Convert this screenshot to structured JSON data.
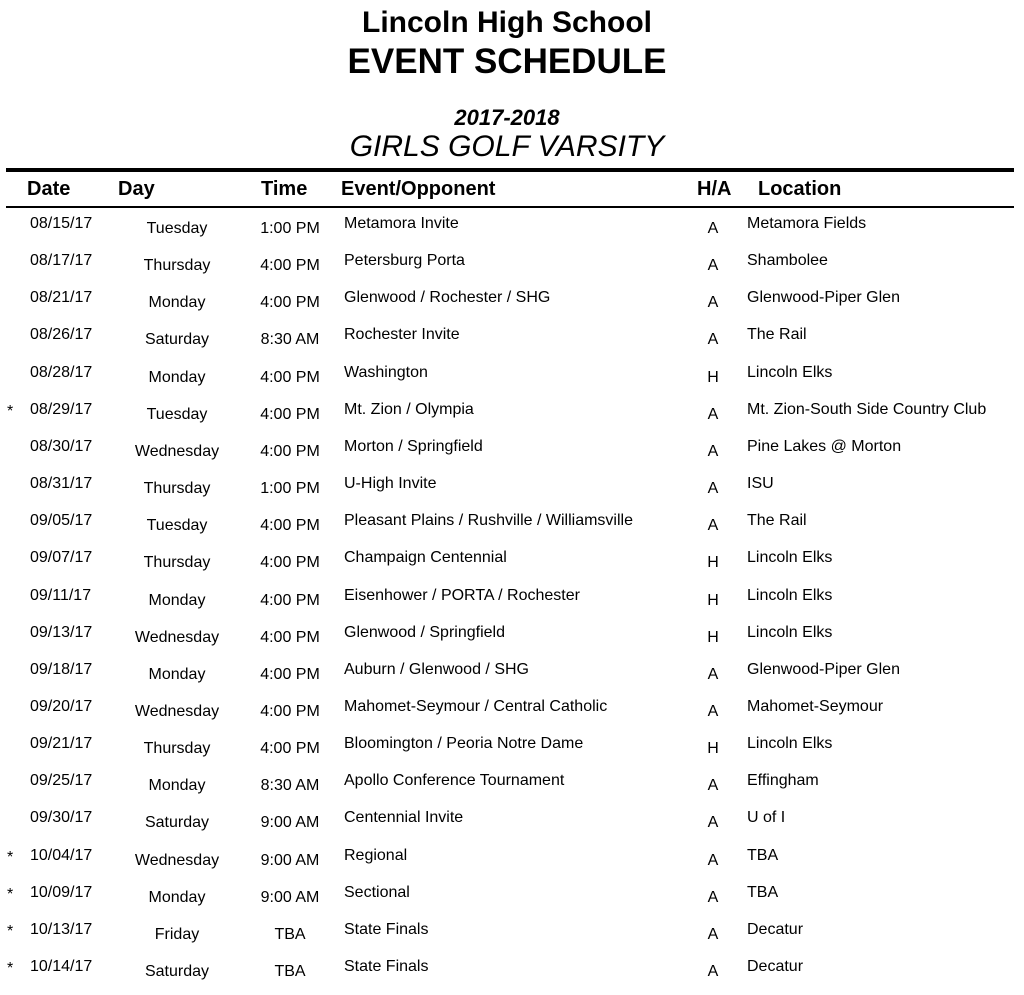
{
  "header": {
    "school": "Lincoln High School",
    "title": "EVENT SCHEDULE",
    "season": "2017-2018",
    "sport": "GIRLS GOLF VARSITY"
  },
  "columns": {
    "date": "Date",
    "day": "Day",
    "time": "Time",
    "event": "Event/Opponent",
    "ha": "H/A",
    "location": "Location"
  },
  "rows": [
    {
      "mark": "",
      "date": "08/15/17",
      "day": "Tuesday",
      "time": "1:00 PM",
      "event": "Metamora Invite",
      "ha": "A",
      "location": "Metamora Fields"
    },
    {
      "mark": "",
      "date": "08/17/17",
      "day": "Thursday",
      "time": "4:00 PM",
      "event": "Petersburg Porta",
      "ha": "A",
      "location": "Shambolee"
    },
    {
      "mark": "",
      "date": "08/21/17",
      "day": "Monday",
      "time": "4:00 PM",
      "event": "Glenwood / Rochester / SHG",
      "ha": "A",
      "location": "Glenwood-Piper Glen"
    },
    {
      "mark": "",
      "date": "08/26/17",
      "day": "Saturday",
      "time": "8:30 AM",
      "event": "Rochester Invite",
      "ha": "A",
      "location": "The Rail"
    },
    {
      "mark": "",
      "date": "08/28/17",
      "day": "Monday",
      "time": "4:00 PM",
      "event": "Washington",
      "ha": "H",
      "location": "Lincoln Elks"
    },
    {
      "mark": "*",
      "date": "08/29/17",
      "day": "Tuesday",
      "time": "4:00 PM",
      "event": "Mt. Zion / Olympia",
      "ha": "A",
      "location": "Mt. Zion-South Side Country Club"
    },
    {
      "mark": "",
      "date": "08/30/17",
      "day": "Wednesday",
      "time": "4:00 PM",
      "event": "Morton / Springfield",
      "ha": "A",
      "location": "Pine Lakes @ Morton"
    },
    {
      "mark": "",
      "date": "08/31/17",
      "day": "Thursday",
      "time": "1:00 PM",
      "event": "U-High Invite",
      "ha": "A",
      "location": "ISU"
    },
    {
      "mark": "",
      "date": "09/05/17",
      "day": "Tuesday",
      "time": "4:00 PM",
      "event": "Pleasant Plains / Rushville / Williamsville",
      "ha": "A",
      "location": "The Rail"
    },
    {
      "mark": "",
      "date": "09/07/17",
      "day": "Thursday",
      "time": "4:00 PM",
      "event": "Champaign Centennial",
      "ha": "H",
      "location": "Lincoln Elks"
    },
    {
      "mark": "",
      "date": "09/11/17",
      "day": "Monday",
      "time": "4:00 PM",
      "event": "Eisenhower / PORTA /  Rochester",
      "ha": "H",
      "location": "Lincoln Elks"
    },
    {
      "mark": "",
      "date": "09/13/17",
      "day": "Wednesday",
      "time": "4:00 PM",
      "event": "Glenwood / Springfield",
      "ha": "H",
      "location": "Lincoln Elks"
    },
    {
      "mark": "",
      "date": "09/18/17",
      "day": "Monday",
      "time": "4:00 PM",
      "event": "Auburn / Glenwood / SHG",
      "ha": "A",
      "location": "Glenwood-Piper Glen"
    },
    {
      "mark": "",
      "date": "09/20/17",
      "day": "Wednesday",
      "time": "4:00 PM",
      "event": "Mahomet-Seymour / Central Catholic",
      "ha": "A",
      "location": "Mahomet-Seymour"
    },
    {
      "mark": "",
      "date": "09/21/17",
      "day": "Thursday",
      "time": "4:00 PM",
      "event": "Bloomington / Peoria Notre Dame",
      "ha": "H",
      "location": "Lincoln Elks"
    },
    {
      "mark": "",
      "date": "09/25/17",
      "day": "Monday",
      "time": "8:30 AM",
      "event": "Apollo Conference Tournament",
      "ha": "A",
      "location": "Effingham"
    },
    {
      "mark": "",
      "date": "09/30/17",
      "day": "Saturday",
      "time": "9:00 AM",
      "event": "Centennial Invite",
      "ha": "A",
      "location": "U of I"
    },
    {
      "mark": "*",
      "date": "10/04/17",
      "day": "Wednesday",
      "time": "9:00 AM",
      "event": "Regional",
      "ha": "A",
      "location": "TBA"
    },
    {
      "mark": "*",
      "date": "10/09/17",
      "day": "Monday",
      "time": "9:00 AM",
      "event": "Sectional",
      "ha": "A",
      "location": "TBA"
    },
    {
      "mark": "*",
      "date": "10/13/17",
      "day": "Friday",
      "time": "TBA",
      "event": "State Finals",
      "ha": "A",
      "location": "Decatur"
    },
    {
      "mark": "*",
      "date": "10/14/17",
      "day": "Saturday",
      "time": "TBA",
      "event": "State Finals",
      "ha": "A",
      "location": "Decatur"
    }
  ]
}
